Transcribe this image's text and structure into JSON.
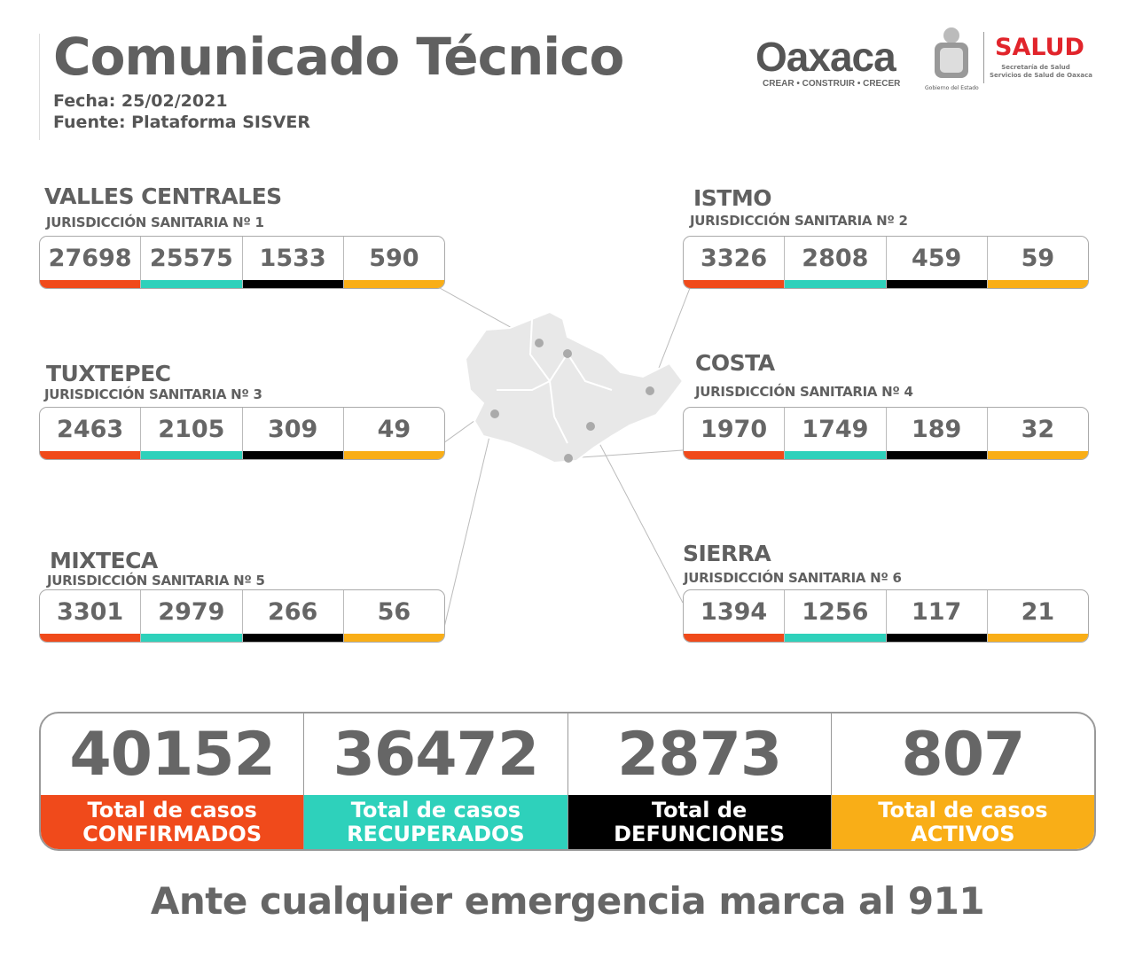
{
  "header": {
    "title": "Comunicado Técnico",
    "date": "Fecha: 25/02/2021",
    "source": "Fuente: Plataforma SISVER"
  },
  "logos": {
    "oaxaca": "Oaxaca",
    "oaxaca_tagline": "CREAR • CONSTRUIR • CRECER",
    "seal_caption": "Gobierno del Estado",
    "salud": "SALUD",
    "salud_line1": "Secretaría de Salud",
    "salud_line2": "Servicios de Salud de Oaxaca"
  },
  "colors": {
    "confirmed": "#f04a1b",
    "recovered": "#2ed1bb",
    "deaths": "#000000",
    "active": "#f9ae17"
  },
  "regions": [
    {
      "name": "VALLES CENTRALES",
      "jurisdiction": "JURISDICCIÓN SANITARIA Nº 1",
      "values": [
        "27698",
        "25575",
        "1533",
        "590"
      ]
    },
    {
      "name": "ISTMO",
      "jurisdiction": "JURISDICCIÓN SANITARIA Nº 2",
      "values": [
        "3326",
        "2808",
        "459",
        "59"
      ]
    },
    {
      "name": "TUXTEPEC",
      "jurisdiction": "JURISDICCIÓN SANITARIA Nº 3",
      "values": [
        "2463",
        "2105",
        "309",
        "49"
      ]
    },
    {
      "name": "COSTA",
      "jurisdiction": "JURISDICCIÓN SANITARIA Nº 4",
      "values": [
        "1970",
        "1749",
        "189",
        "32"
      ]
    },
    {
      "name": "MIXTECA",
      "jurisdiction": "JURISDICCIÓN SANITARIA Nº 5",
      "values": [
        "3301",
        "2979",
        "266",
        "56"
      ]
    },
    {
      "name": "SIERRA",
      "jurisdiction": "JURISDICCIÓN SANITARIA Nº 6",
      "values": [
        "1394",
        "1256",
        "117",
        "21"
      ]
    }
  ],
  "totals": [
    {
      "value": "40152",
      "line1": "Total de casos",
      "line2": "CONFIRMADOS"
    },
    {
      "value": "36472",
      "line1": "Total de casos",
      "line2": "RECUPERADOS"
    },
    {
      "value": "2873",
      "line1": "Total de",
      "line2": "DEFUNCIONES"
    },
    {
      "value": "807",
      "line1": "Total de casos",
      "line2": "ACTIVOS"
    }
  ],
  "footer": "Ante cualquier emergencia marca al 911"
}
